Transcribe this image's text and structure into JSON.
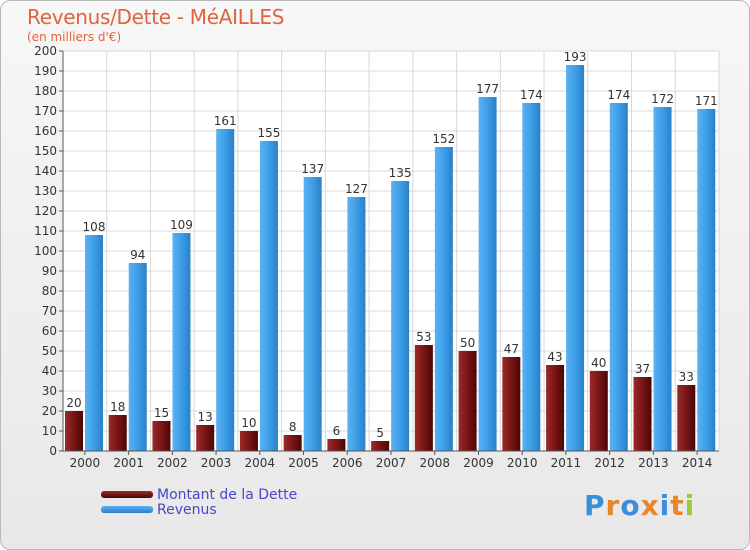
{
  "header": {
    "title": "Revenus/Dette - MéAILLES",
    "subtitle": "(en milliers d'€)"
  },
  "legend": [
    {
      "label": "Montant de la Dette",
      "color": "#7a1a1a"
    },
    {
      "label": "Revenus",
      "color": "#3d9ee8"
    }
  ],
  "logo": {
    "text": "Proxiti"
  },
  "chart_data": {
    "type": "bar",
    "categories": [
      "2000",
      "2001",
      "2002",
      "2003",
      "2004",
      "2005",
      "2006",
      "2007",
      "2008",
      "2009",
      "2010",
      "2011",
      "2012",
      "2013",
      "2014"
    ],
    "series": [
      {
        "name": "Montant de la Dette",
        "values": [
          20,
          18,
          15,
          13,
          10,
          8,
          6,
          5,
          53,
          50,
          47,
          43,
          40,
          37,
          33
        ],
        "color": "#7a1a1a"
      },
      {
        "name": "Revenus",
        "values": [
          108,
          94,
          109,
          161,
          155,
          137,
          127,
          135,
          152,
          177,
          174,
          193,
          174,
          172,
          171
        ],
        "color": "#3d9ee8"
      }
    ],
    "ylim": [
      0,
      200
    ],
    "ytick_step": 10,
    "grid": true,
    "data_labels": true,
    "legend_position": "bottom-left"
  }
}
